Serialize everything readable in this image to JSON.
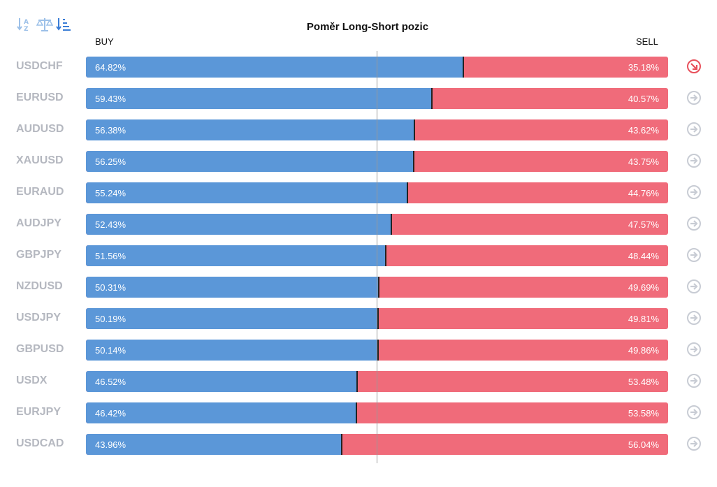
{
  "toolbar": {
    "icons": [
      "sort-alpha-icon",
      "balance-scale-icon",
      "sort-amount-icon"
    ]
  },
  "colors": {
    "buy": "#5b97d8",
    "sell": "#f06b7a",
    "symbol_text": "#b5b8c0",
    "arrow_active": "#e8505b",
    "arrow_inactive": "#c8ccd4"
  },
  "chart_data": {
    "type": "bar",
    "title": "Poměr Long-Short pozic",
    "buy_label": "BUY",
    "sell_label": "SELL",
    "categories": [
      "USDCHF",
      "EURUSD",
      "AUDUSD",
      "XAUUSD",
      "EURAUD",
      "AUDJPY",
      "GBPJPY",
      "NZDUSD",
      "USDJPY",
      "GBPUSD",
      "USDX",
      "EURJPY",
      "USDCAD"
    ],
    "series": [
      {
        "name": "BUY",
        "values": [
          64.82,
          59.43,
          56.38,
          56.25,
          55.24,
          52.43,
          51.56,
          50.31,
          50.19,
          50.14,
          46.52,
          46.42,
          43.96
        ]
      },
      {
        "name": "SELL",
        "values": [
          35.18,
          40.57,
          43.62,
          43.75,
          44.76,
          47.57,
          48.44,
          49.69,
          49.81,
          49.86,
          53.48,
          53.58,
          56.04
        ]
      }
    ],
    "buy_text": [
      "64.82%",
      "59.43%",
      "56.38%",
      "56.25%",
      "55.24%",
      "52.43%",
      "51.56%",
      "50.31%",
      "50.19%",
      "50.14%",
      "46.52%",
      "46.42%",
      "43.96%"
    ],
    "sell_text": [
      "35.18%",
      "40.57%",
      "43.62%",
      "43.75%",
      "44.76%",
      "47.57%",
      "48.44%",
      "49.69%",
      "49.81%",
      "49.86%",
      "53.48%",
      "53.58%",
      "56.04%"
    ],
    "active_row": 0
  }
}
